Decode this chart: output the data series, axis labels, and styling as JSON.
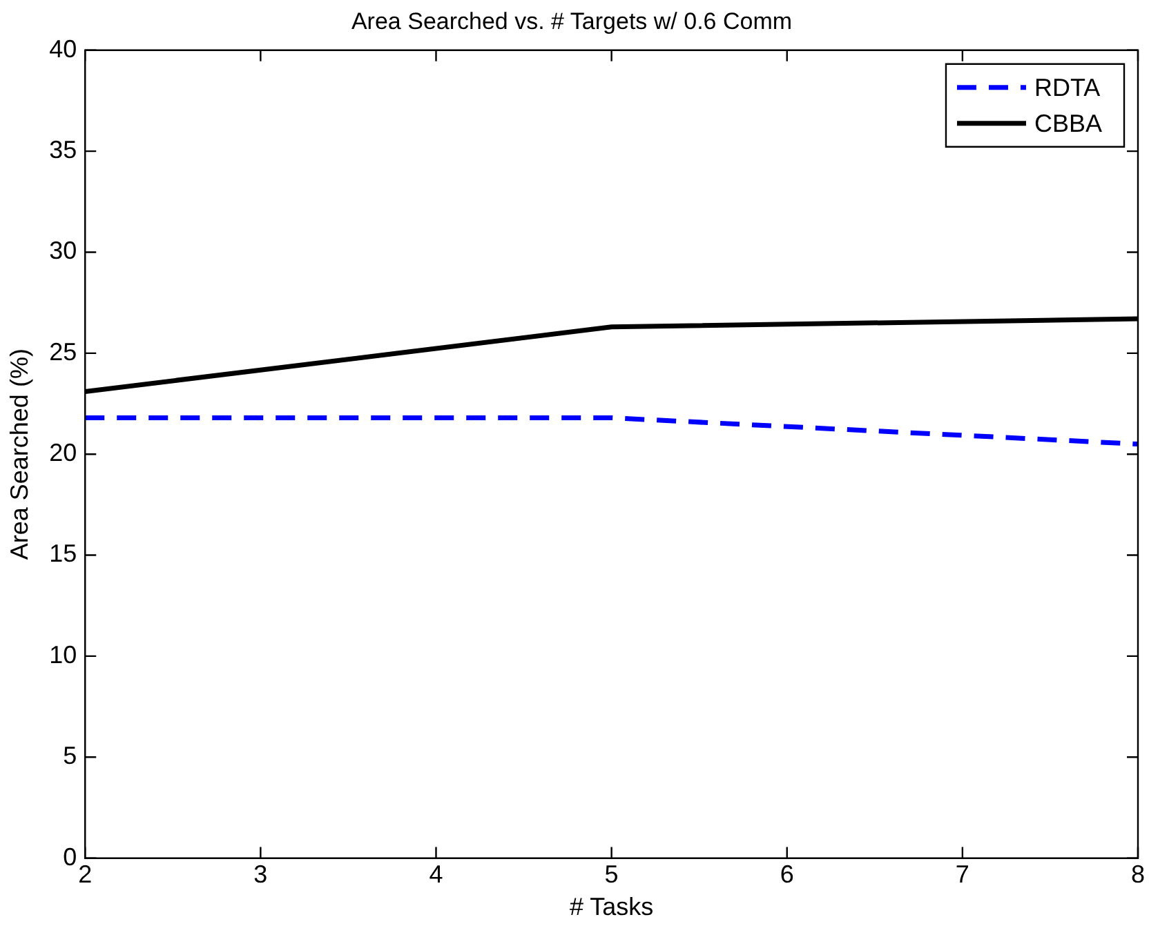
{
  "chart_data": {
    "type": "line",
    "title": "Area Searched vs. # Targets w/ 0.6 Comm",
    "xlabel": "# Tasks",
    "ylabel": "Area Searched (%)",
    "x": [
      2,
      5,
      8
    ],
    "series": [
      {
        "name": "RDTA",
        "color": "#0000ff",
        "values": [
          21.8,
          21.8,
          20.5
        ],
        "line_style": "dashed"
      },
      {
        "name": "CBBA",
        "color": "#000000",
        "values": [
          23.1,
          26.3,
          26.7
        ],
        "line_style": "solid"
      }
    ],
    "xlim": [
      2,
      8
    ],
    "xticks": [
      2,
      3,
      4,
      5,
      6,
      7,
      8
    ],
    "ylim": [
      0,
      40
    ],
    "yticks": [
      0,
      5,
      10,
      15,
      20,
      25,
      30,
      35,
      40
    ],
    "grid": false,
    "legend": "top right",
    "marker": "none"
  }
}
